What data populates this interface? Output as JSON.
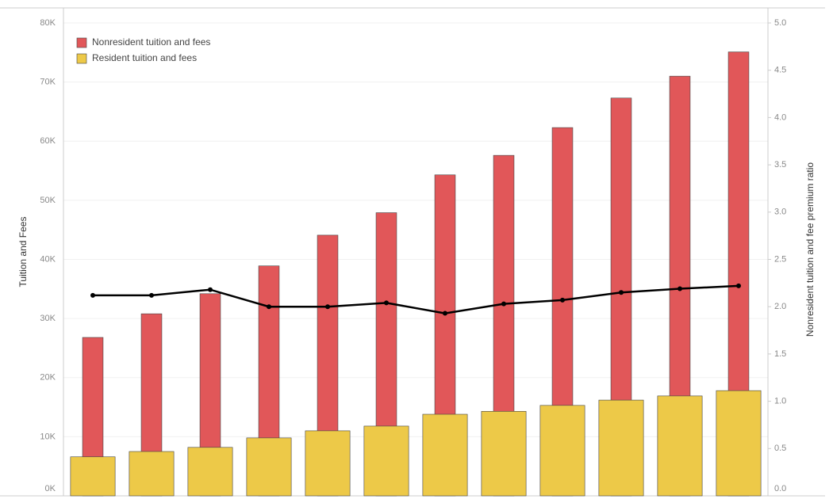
{
  "chart_data": {
    "type": "bar",
    "y_label": "Tuition and Fees",
    "y2_label": "Nonresident tuition and fee premium ratio",
    "categories": [
      null,
      null,
      null,
      null,
      null,
      null,
      null,
      null,
      null,
      null,
      null,
      null
    ],
    "series": [
      {
        "name": "Nonresident tuition and fees",
        "type": "bar",
        "color": "#e15759",
        "values": [
          26.8,
          30.8,
          34.2,
          38.9,
          44.1,
          47.9,
          54.3,
          57.6,
          62.3,
          67.3,
          71.0,
          75.1
        ]
      },
      {
        "name": "Resident tuition and fees",
        "type": "bar",
        "color": "#edc948",
        "values": [
          6.6,
          7.5,
          8.2,
          9.8,
          11.0,
          11.8,
          13.8,
          14.3,
          15.3,
          16.2,
          16.9,
          17.8
        ]
      },
      {
        "type": "line",
        "axis": "y2",
        "color": "#000000",
        "values": [
          2.12,
          2.12,
          2.18,
          2.0,
          2.0,
          2.04,
          1.93,
          2.03,
          2.07,
          2.15,
          2.19,
          2.22
        ]
      }
    ],
    "ylim": [
      0,
      80
    ],
    "yticks": [
      {
        "value": 0,
        "label": "0K"
      },
      {
        "value": 10,
        "label": "10K"
      },
      {
        "value": 20,
        "label": "20K"
      },
      {
        "value": 30,
        "label": "30K"
      },
      {
        "value": 40,
        "label": "40K"
      },
      {
        "value": 50,
        "label": "50K"
      },
      {
        "value": 60,
        "label": "60K"
      },
      {
        "value": 70,
        "label": "70K"
      },
      {
        "value": 80,
        "label": "80K"
      }
    ],
    "y2lim": [
      0,
      5
    ],
    "y2ticks": [
      {
        "value": 0,
        "label": "0.0"
      },
      0.5,
      {
        "value": 1,
        "label": "1.0"
      },
      1.5,
      {
        "value": 2,
        "label": "2.0"
      },
      2.5,
      {
        "value": 3,
        "label": "3.0"
      },
      3.5,
      {
        "value": 4,
        "label": "4.0"
      },
      4.5,
      {
        "value": 5,
        "label": "5.0"
      }
    ],
    "grid": true,
    "legend": "top-left"
  }
}
